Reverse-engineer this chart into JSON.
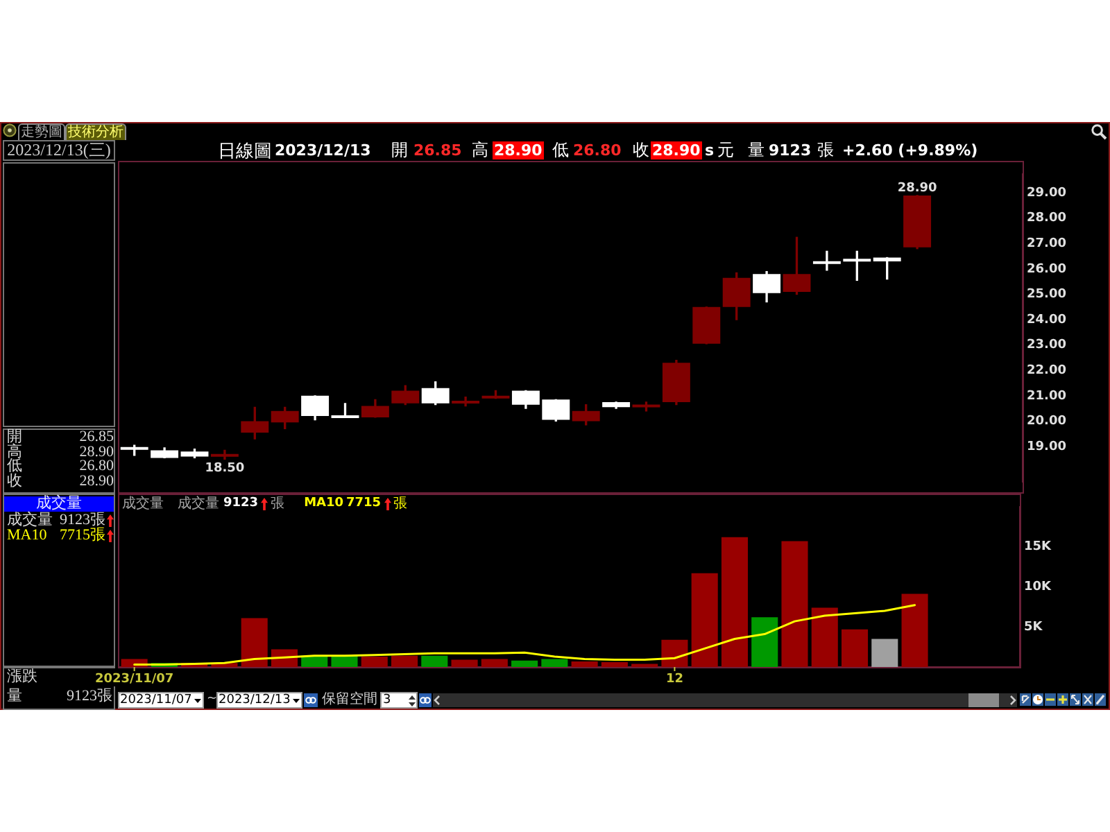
{
  "chart_data": [
    {
      "type": "candlestick",
      "title": "日線圖",
      "categories": [
        "2023/11/07",
        null,
        null,
        null,
        null,
        null,
        null,
        null,
        null,
        null,
        null,
        null,
        null,
        null,
        null,
        null,
        null,
        null,
        "12",
        null,
        null,
        null,
        null,
        null,
        null,
        null,
        null,
        null,
        null,
        null
      ],
      "ohlc": [
        [
          18.95,
          19.05,
          18.65,
          18.9
        ],
        [
          18.85,
          18.95,
          18.55,
          18.55
        ],
        [
          18.8,
          18.9,
          18.55,
          18.6
        ],
        [
          18.6,
          18.85,
          18.5,
          18.7
        ],
        [
          19.55,
          20.55,
          19.3,
          20.0
        ],
        [
          19.95,
          20.55,
          19.7,
          20.4
        ],
        [
          21.0,
          21.0,
          20.05,
          20.2
        ],
        [
          20.2,
          20.7,
          20.15,
          20.15
        ],
        [
          20.15,
          20.85,
          20.15,
          20.6
        ],
        [
          20.7,
          21.4,
          20.65,
          21.2
        ],
        [
          21.3,
          21.55,
          20.65,
          20.7
        ],
        [
          20.7,
          20.95,
          20.6,
          20.8
        ],
        [
          20.9,
          21.2,
          20.9,
          21.0
        ],
        [
          21.2,
          21.2,
          20.5,
          20.65
        ],
        [
          20.85,
          20.85,
          20.0,
          20.05
        ],
        [
          20.0,
          20.65,
          19.85,
          20.4
        ],
        [
          20.75,
          20.75,
          20.5,
          20.55
        ],
        [
          20.55,
          20.75,
          20.4,
          20.65
        ],
        [
          20.75,
          22.4,
          20.65,
          22.3
        ],
        [
          23.05,
          24.5,
          23.05,
          24.5
        ],
        [
          24.5,
          25.85,
          24.0,
          25.65
        ],
        [
          25.8,
          25.9,
          24.7,
          25.05
        ],
        [
          25.1,
          27.25,
          25.0,
          25.8
        ],
        [
          26.3,
          26.7,
          25.95,
          26.2
        ],
        [
          26.4,
          26.7,
          25.55,
          26.3
        ],
        [
          26.45,
          26.45,
          25.6,
          26.3
        ],
        [
          26.85,
          28.9,
          26.8,
          28.9
        ],
        null,
        null,
        null
      ],
      "colors": [
        "#ffffff",
        "#ffffff",
        "#ffffff",
        "#800000",
        "#800000",
        "#800000",
        "#ffffff",
        "#ffffff",
        "#800000",
        "#800000",
        "#ffffff",
        "#800000",
        "#800000",
        "#ffffff",
        "#ffffff",
        "#800000",
        "#ffffff",
        "#800000",
        "#800000",
        "#800000",
        "#800000",
        "#ffffff",
        "#800000",
        "#ffffff",
        "#ffffff",
        "#ffffff",
        "#800000",
        null,
        null,
        null
      ],
      "ylim": [
        17.6,
        29.75
      ],
      "yticks": [
        {
          "value": 19,
          "label": "19.00"
        },
        {
          "value": 20,
          "label": "20.00"
        },
        {
          "value": 21,
          "label": "21.00"
        },
        {
          "value": 22,
          "label": "22.00"
        },
        {
          "value": 23,
          "label": "23.00"
        },
        {
          "value": 24,
          "label": "24.00"
        },
        {
          "value": 25,
          "label": "25.00"
        },
        {
          "value": 26,
          "label": "26.00"
        },
        {
          "value": 27,
          "label": "27.00"
        },
        {
          "value": 28,
          "label": "28.00"
        },
        {
          "value": 29,
          "label": "29.00"
        }
      ],
      "tick_labels": "y",
      "annotations": [
        "走勢圖",
        "技術分析",
        "2023/12/13(三)",
        "2023/12/13",
        "開",
        "26.85",
        "高",
        "28.90",
        "低",
        "26.80",
        "收",
        "28.90",
        "s",
        "元",
        "量",
        "9123",
        "張",
        "+2.60 (+9.89%)",
        "開",
        "26.85",
        "高",
        "28.90",
        "低",
        "26.80",
        "收",
        "28.90",
        "28.90",
        "18.50"
      ]
    },
    {
      "type": "bar",
      "title": "成交量",
      "categories": [
        "2023/11/07",
        null,
        null,
        null,
        null,
        null,
        null,
        null,
        null,
        null,
        null,
        null,
        null,
        null,
        null,
        null,
        null,
        null,
        "12",
        null,
        null,
        null,
        null,
        null,
        null,
        null,
        null,
        null,
        null,
        null
      ],
      "series": [
        {
          "type": "bar",
          "colors": [
            "#990000",
            "#009900",
            "#990000",
            "#990000",
            "#990000",
            "#990000",
            "#009900",
            "#009900",
            "#990000",
            "#990000",
            "#009900",
            "#990000",
            "#990000",
            "#009900",
            "#009900",
            "#990000",
            "#990000",
            "#990000",
            "#990000",
            "#990000",
            "#990000",
            "#009900",
            "#990000",
            "#990000",
            "#990000",
            "#a0a0a0",
            "#990000",
            null,
            null,
            null
          ],
          "values": [
            1000,
            500,
            500,
            500,
            6100,
            2200,
            1400,
            1400,
            1300,
            1400,
            1400,
            900,
            1000,
            800,
            1000,
            700,
            600,
            400,
            3400,
            11700,
            16200,
            6200,
            15700,
            7400,
            4700,
            3500,
            9123,
            null,
            null,
            null
          ]
        },
        {
          "type": "line",
          "name": "MA10",
          "color": "#ffff00",
          "values": [
            300,
            300,
            400,
            500,
            1000,
            1200,
            1400,
            1400,
            1500,
            1600,
            1700,
            1700,
            1700,
            1800,
            1300,
            1000,
            900,
            900,
            1100,
            2300,
            3500,
            4100,
            5700,
            6400,
            6700,
            7000,
            7715,
            null,
            null,
            null
          ]
        }
      ],
      "ylim": [
        0,
        20000
      ],
      "yticks": [
        {
          "value": 5000,
          "label": "5K"
        },
        {
          "value": 10000,
          "label": "10K"
        },
        {
          "value": 15000,
          "label": "15K"
        }
      ],
      "legend": "top left",
      "annotations": [
        "成交量",
        "9123",
        "張",
        "7715",
        "張",
        "成交量",
        "成交量",
        "9123張",
        "7715張",
        "漲跌",
        "量",
        "9123張",
        "~",
        "2023/12/13",
        "保留空間",
        "3"
      ]
    }
  ]
}
